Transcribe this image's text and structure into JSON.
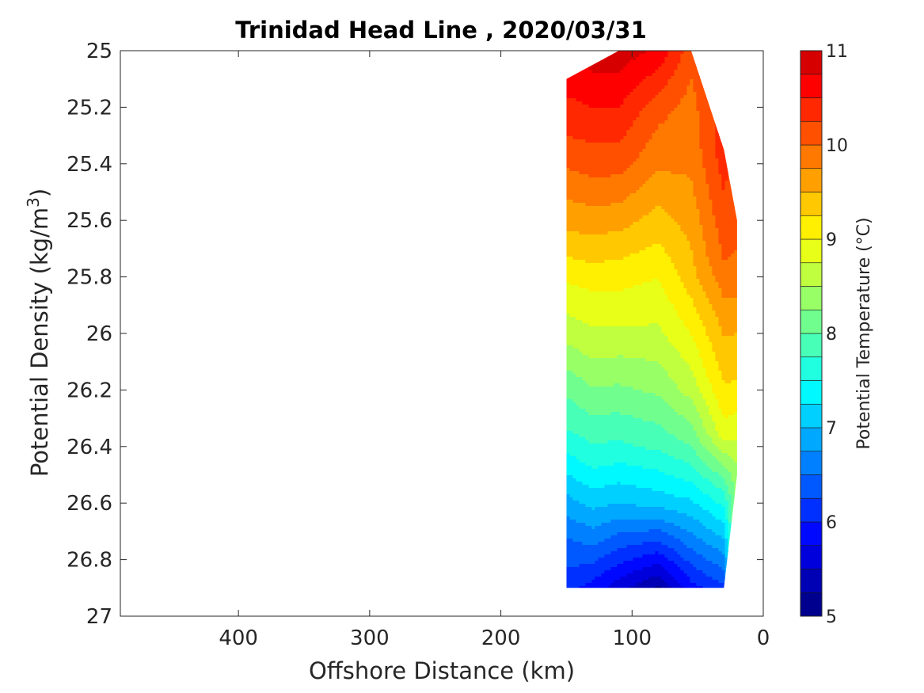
{
  "chart_data": {
    "type": "heatmap",
    "title": "Trinidad Head Line , 2020/03/31",
    "xlabel": "Offshore Distance (km)",
    "ylabel_main": "Potential Density (kg/m",
    "ylabel_sup": "3",
    "ylabel_end": ")",
    "colorbar_label": "Potential Temperature (°C)",
    "xlim": [
      490,
      0
    ],
    "xaxis_reversed": true,
    "ylim": [
      25,
      27
    ],
    "yaxis_reversed": true,
    "x_ticks": [
      400,
      300,
      200,
      100,
      0
    ],
    "x_tick_labels": [
      "400",
      "300",
      "200",
      "100",
      "0"
    ],
    "y_ticks": [
      25,
      25.2,
      25.4,
      25.6,
      25.8,
      26,
      26.2,
      26.4,
      26.6,
      26.8,
      27
    ],
    "y_tick_labels": [
      "25",
      "25.2",
      "25.4",
      "25.6",
      "25.8",
      "26",
      "26.2",
      "26.4",
      "26.6",
      "26.8",
      "27"
    ],
    "colorbar_range": [
      5,
      11
    ],
    "colorbar_ticks": [
      5,
      6,
      7,
      8,
      9,
      10,
      11
    ],
    "colorbar_tick_labels": [
      "5",
      "6",
      "7",
      "8",
      "9",
      "10",
      "11"
    ],
    "contour_levels": [
      5,
      5.25,
      5.5,
      5.75,
      6,
      6.25,
      6.5,
      6.75,
      7,
      7.25,
      7.5,
      7.75,
      8,
      8.25,
      8.5,
      8.75,
      9,
      9.25,
      9.5,
      9.75,
      10,
      10.25,
      10.5,
      10.75,
      11
    ],
    "colormap": "jet",
    "colormap_hex": [
      "#00008f",
      "#0000b5",
      "#0000dd",
      "#0008ff",
      "#0030ff",
      "#0058ff",
      "#0080ff",
      "#00a8ff",
      "#00d0ff",
      "#00f8ff",
      "#20ffdf",
      "#48ffb7",
      "#70ff8f",
      "#98ff67",
      "#c0ff3f",
      "#e8ff17",
      "#ffef00",
      "#ffc800",
      "#ffa000",
      "#ff7800",
      "#ff5000",
      "#ff2800",
      "#ff0000",
      "#d70000",
      "#af0000"
    ],
    "section_extent": {
      "x_range_km": [
        150,
        20
      ],
      "sigma_range": [
        25.1,
        26.9
      ]
    },
    "profiles": [
      {
        "x": 150,
        "sigma": [
          25.1,
          25.28,
          25.46,
          25.64,
          25.82,
          26.0,
          26.18,
          26.36,
          26.54,
          26.72,
          26.9
        ],
        "temp": [
          10.6,
          10.3,
          9.9,
          9.5,
          9.0,
          8.6,
          8.1,
          7.7,
          7.1,
          6.5,
          6.1
        ]
      },
      {
        "x": 130,
        "sigma": [
          25.05,
          25.25,
          25.45,
          25.65,
          25.85,
          26.05,
          26.25,
          26.45,
          26.65,
          26.9
        ],
        "temp": [
          10.8,
          10.4,
          10.0,
          9.5,
          9.0,
          8.6,
          8.1,
          7.6,
          6.9,
          5.9
        ]
      },
      {
        "x": 110,
        "sigma": [
          25.0,
          25.2,
          25.4,
          25.6,
          25.8,
          26.0,
          26.2,
          26.4,
          26.6,
          26.9
        ],
        "temp": [
          10.9,
          10.5,
          10.1,
          9.6,
          9.1,
          8.7,
          8.2,
          7.7,
          7.0,
          5.6
        ]
      },
      {
        "x": 80,
        "sigma": [
          25.0,
          25.2,
          25.4,
          25.6,
          25.8,
          26.0,
          26.2,
          26.4,
          26.6,
          26.9
        ],
        "temp": [
          10.7,
          10.1,
          9.8,
          9.4,
          9.0,
          8.7,
          8.3,
          7.8,
          7.1,
          5.2
        ]
      },
      {
        "x": 55,
        "sigma": [
          25.0,
          25.2,
          25.4,
          25.6,
          25.8,
          26.0,
          26.2,
          26.4,
          26.6,
          26.9
        ],
        "temp": [
          10.1,
          9.9,
          9.8,
          9.6,
          9.4,
          9.0,
          8.6,
          8.0,
          7.2,
          5.9
        ]
      },
      {
        "x": 30,
        "sigma": [
          25.35,
          25.55,
          25.75,
          25.95,
          26.15,
          26.35,
          26.55,
          26.9
        ],
        "temp": [
          10.4,
          10.2,
          10.0,
          9.6,
          9.3,
          8.9,
          7.8,
          6.2
        ]
      },
      {
        "x": 20,
        "sigma": [
          25.6,
          25.8,
          26.0,
          26.2,
          26.4,
          26.5
        ],
        "temp": [
          10.1,
          9.9,
          9.5,
          9.2,
          8.7,
          8.4
        ]
      }
    ]
  }
}
